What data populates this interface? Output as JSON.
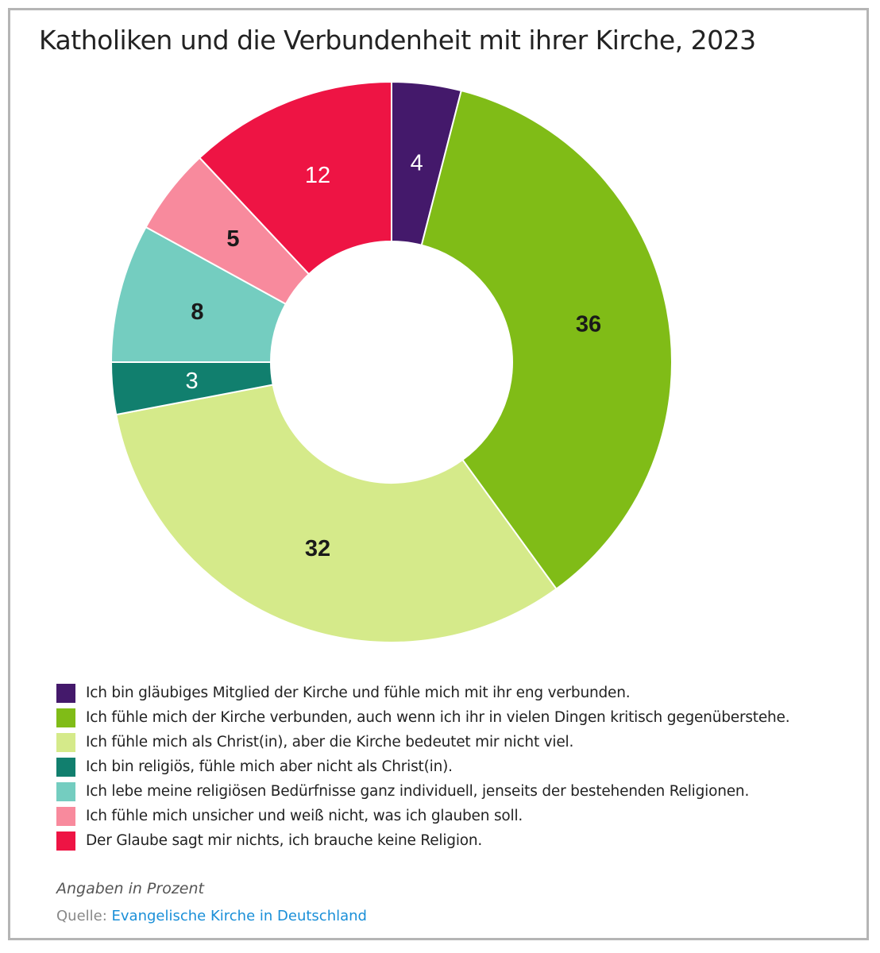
{
  "header": {
    "title": "Katholiken und die Verbundenheit mit ihrer Kirche, 2023"
  },
  "chart_data": {
    "type": "pie",
    "subtype": "donut",
    "title": "Katholiken und die Verbundenheit mit ihrer Kirche, 2023",
    "unit_note": "Angaben in Prozent",
    "slices": [
      {
        "label": "Ich bin gläubiges Mitglied der Kirche und fühle mich mit ihr eng verbunden.",
        "value": 4,
        "display": "4",
        "color": "#44196b",
        "label_color": "#ffffff"
      },
      {
        "label": "Ich fühle mich der Kirche verbunden, auch wenn ich ihr in vielen Dingen kritisch gegenüberstehe.",
        "value": 36,
        "display": "36",
        "color": "#80bc17",
        "label_color": "#1a1a1a"
      },
      {
        "label": "Ich fühle mich als Christ(in), aber die Kirche bedeutet mir nicht viel.",
        "value": 32,
        "display": "32",
        "color": "#d5ea8a",
        "label_color": "#1a1a1a"
      },
      {
        "label": "Ich bin religiös, fühle mich aber nicht als Christ(in).",
        "value": 3,
        "display": "3",
        "color": "#117f6e",
        "label_color": "#ffffff"
      },
      {
        "label": "Ich lebe meine religiösen Bedürfnisse ganz individuell, jenseits der bestehenden Religionen.",
        "value": 8,
        "display": "8",
        "color": "#74cdc0",
        "label_color": "#1a1a1a"
      },
      {
        "label": "Ich fühle mich unsicher und weiß nicht, was ich glauben soll.",
        "value": 5,
        "display": "5",
        "color": "#f88a9d",
        "label_color": "#1a1a1a"
      },
      {
        "label": "Der Glaube sagt mir nichts, ich brauche keine Religion.",
        "value": 12,
        "display": "12",
        "color": "#ee1444",
        "label_color": "#ffffff"
      }
    ],
    "legend_position": "bottom"
  },
  "footer": {
    "note": "Angaben in Prozent",
    "source_label": "Quelle:",
    "source_link": "Evangelische Kirche in Deutschland"
  }
}
